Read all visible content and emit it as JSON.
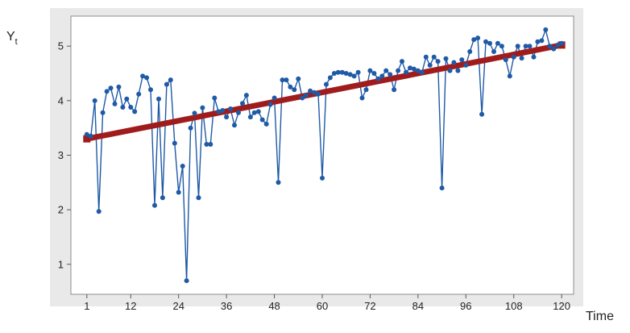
{
  "chart_data": {
    "type": "line",
    "title": "",
    "xlabel": "Time",
    "ylabel": "Y",
    "ylabel_subscript": "t",
    "x_ticks": [
      1,
      12,
      24,
      36,
      48,
      60,
      72,
      84,
      96,
      108,
      120
    ],
    "y_ticks": [
      1,
      2,
      3,
      4,
      5
    ],
    "xlim": [
      -3,
      123
    ],
    "ylim": [
      0.45,
      5.55
    ],
    "grid": false,
    "legend": "none",
    "series": [
      {
        "kind": "line-with-markers",
        "color": "#1f5aa6",
        "x": [
          1,
          2,
          3,
          4,
          5,
          6,
          7,
          8,
          9,
          10,
          11,
          12,
          13,
          14,
          15,
          16,
          17,
          18,
          19,
          20,
          21,
          22,
          23,
          24,
          25,
          26,
          27,
          28,
          29,
          30,
          31,
          32,
          33,
          34,
          35,
          36,
          37,
          38,
          39,
          40,
          41,
          42,
          43,
          44,
          45,
          46,
          47,
          48,
          49,
          50,
          51,
          52,
          53,
          54,
          55,
          56,
          57,
          58,
          59,
          60,
          61,
          62,
          63,
          64,
          65,
          66,
          67,
          68,
          69,
          70,
          71,
          72,
          73,
          74,
          75,
          76,
          77,
          78,
          79,
          80,
          81,
          82,
          83,
          84,
          85,
          86,
          87,
          88,
          89,
          90,
          91,
          92,
          93,
          94,
          95,
          96,
          97,
          98,
          99,
          100,
          101,
          102,
          103,
          104,
          105,
          106,
          107,
          108,
          109,
          110,
          111,
          112,
          113,
          114,
          115,
          116,
          117,
          118,
          119,
          120
        ],
        "values": [
          3.38,
          3.35,
          4.0,
          1.97,
          3.78,
          4.17,
          4.23,
          3.94,
          4.25,
          3.88,
          4.03,
          3.88,
          3.8,
          4.12,
          4.45,
          4.42,
          4.2,
          2.08,
          4.03,
          2.22,
          4.3,
          4.38,
          3.22,
          2.32,
          2.8,
          0.7,
          3.5,
          3.77,
          2.22,
          3.87,
          3.2,
          3.2,
          4.05,
          3.8,
          3.82,
          3.7,
          3.85,
          3.55,
          3.78,
          3.95,
          4.1,
          3.7,
          3.78,
          3.8,
          3.65,
          3.57,
          3.93,
          4.05,
          2.5,
          4.38,
          4.38,
          4.25,
          4.2,
          4.4,
          4.05,
          4.1,
          4.18,
          4.15,
          4.12,
          2.58,
          4.3,
          4.42,
          4.5,
          4.52,
          4.52,
          4.5,
          4.48,
          4.45,
          4.52,
          4.05,
          4.2,
          4.55,
          4.5,
          4.4,
          4.45,
          4.55,
          4.48,
          4.2,
          4.55,
          4.72,
          4.52,
          4.6,
          4.58,
          4.55,
          4.52,
          4.8,
          4.65,
          4.8,
          4.72,
          2.4,
          4.77,
          4.55,
          4.7,
          4.55,
          4.75,
          4.65,
          4.9,
          5.12,
          5.15,
          3.75,
          5.08,
          5.05,
          4.9,
          5.05,
          5.0,
          4.75,
          4.45,
          4.8,
          5.0,
          4.78,
          5.0,
          5.0,
          4.8,
          5.08,
          5.1,
          5.3,
          5.0,
          4.95,
          5.02,
          5.05
        ]
      },
      {
        "kind": "trend-line",
        "color": "#a01c1c",
        "x": [
          1,
          120
        ],
        "values": [
          3.3,
          5.02
        ]
      }
    ]
  }
}
